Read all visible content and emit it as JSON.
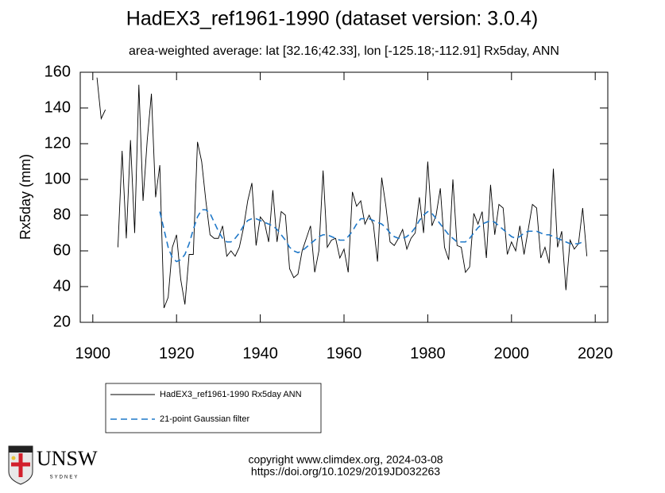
{
  "chart_data": {
    "type": "line",
    "title": "HadEX3_ref1961-1990 (dataset version: 3.0.4)",
    "subtitle": "area-weighted average: lat [32.16;42.33], lon [-125.18;-112.91]  Rx5day, ANN",
    "ylabel": "Rx5day (mm)",
    "x": [
      1901,
      1902,
      1903,
      1904,
      1905,
      1906,
      1907,
      1908,
      1909,
      1910,
      1911,
      1912,
      1913,
      1914,
      1915,
      1916,
      1917,
      1918,
      1919,
      1920,
      1921,
      1922,
      1923,
      1924,
      1925,
      1926,
      1927,
      1928,
      1929,
      1930,
      1931,
      1932,
      1933,
      1934,
      1935,
      1936,
      1937,
      1938,
      1939,
      1940,
      1941,
      1942,
      1943,
      1944,
      1945,
      1946,
      1947,
      1948,
      1949,
      1950,
      1951,
      1952,
      1953,
      1954,
      1955,
      1956,
      1957,
      1958,
      1959,
      1960,
      1961,
      1962,
      1963,
      1964,
      1965,
      1966,
      1967,
      1968,
      1969,
      1970,
      1971,
      1972,
      1973,
      1974,
      1975,
      1976,
      1977,
      1978,
      1979,
      1980,
      1981,
      1982,
      1983,
      1984,
      1985,
      1986,
      1987,
      1988,
      1989,
      1990,
      1991,
      1992,
      1993,
      1994,
      1995,
      1996,
      1997,
      1998,
      1999,
      2000,
      2001,
      2002,
      2003,
      2004,
      2005,
      2006,
      2007,
      2008,
      2009,
      2010,
      2011,
      2012,
      2013,
      2014,
      2015,
      2016,
      2017,
      2018
    ],
    "series": [
      {
        "name": "HadEX3_ref1961-1990 Rx5day ANN",
        "color": "#000000",
        "dash": "solid",
        "values": [
          157,
          134,
          139,
          null,
          null,
          62,
          116,
          67,
          122,
          70,
          153,
          88,
          122,
          148,
          90,
          108,
          28,
          34,
          62,
          69,
          44,
          30,
          58,
          58,
          121,
          110,
          88,
          69,
          67,
          67,
          74,
          57,
          60,
          57,
          62,
          73,
          88,
          98,
          63,
          79,
          76,
          65,
          94,
          65,
          82,
          80,
          50,
          45,
          47,
          60,
          67,
          74,
          48,
          60,
          105,
          62,
          66,
          67,
          56,
          61,
          48,
          93,
          85,
          88,
          75,
          80,
          75,
          54,
          101,
          85,
          65,
          63,
          67,
          72,
          61,
          67,
          70,
          90,
          70,
          110,
          74,
          80,
          95,
          62,
          55,
          100,
          63,
          62,
          48,
          51,
          81,
          75,
          82,
          56,
          97,
          69,
          86,
          84,
          58,
          65,
          60,
          74,
          58,
          72,
          86,
          84,
          56,
          62,
          53,
          106,
          62,
          71,
          38,
          66,
          61,
          64,
          84,
          57
        ]
      },
      {
        "name": "21-point Gaussian filter",
        "color": "#1f78c8",
        "dash": "dashed",
        "values": [
          null,
          null,
          null,
          null,
          null,
          null,
          null,
          null,
          null,
          null,
          null,
          null,
          null,
          null,
          null,
          82,
          72,
          62,
          56,
          54,
          55,
          58,
          64,
          72,
          79,
          83,
          83,
          81,
          76,
          71,
          67,
          65,
          65,
          67,
          70,
          74,
          77,
          78,
          78,
          77,
          76,
          75,
          74,
          72,
          69,
          66,
          62,
          60,
          59,
          60,
          62,
          64,
          66,
          68,
          69,
          69,
          68,
          67,
          66,
          66,
          68,
          71,
          75,
          78,
          78,
          78,
          77,
          76,
          75,
          73,
          70,
          68,
          67,
          67,
          68,
          70,
          73,
          77,
          80,
          82,
          81,
          78,
          75,
          72,
          69,
          67,
          65,
          65,
          65,
          67,
          70,
          73,
          75,
          76,
          77,
          76,
          74,
          72,
          70,
          68,
          67,
          68,
          70,
          71,
          71,
          71,
          70,
          69,
          69,
          68,
          67,
          66,
          65,
          64,
          64,
          64,
          65,
          null
        ]
      }
    ],
    "xlim": [
      1897,
      2023
    ],
    "xticks": [
      1900,
      1920,
      1940,
      1960,
      1980,
      2000,
      2020
    ],
    "ylim": [
      20,
      160
    ],
    "yticks": [
      20,
      40,
      60,
      80,
      100,
      120,
      140,
      160
    ],
    "legend": "below"
  },
  "footer": {
    "lines": [
      "copyright www.climdex.org, 2024-03-08",
      "https://doi.org/10.1029/2019JD032263"
    ]
  },
  "logo": {
    "name": "UNSW",
    "city": "SYDNEY"
  }
}
